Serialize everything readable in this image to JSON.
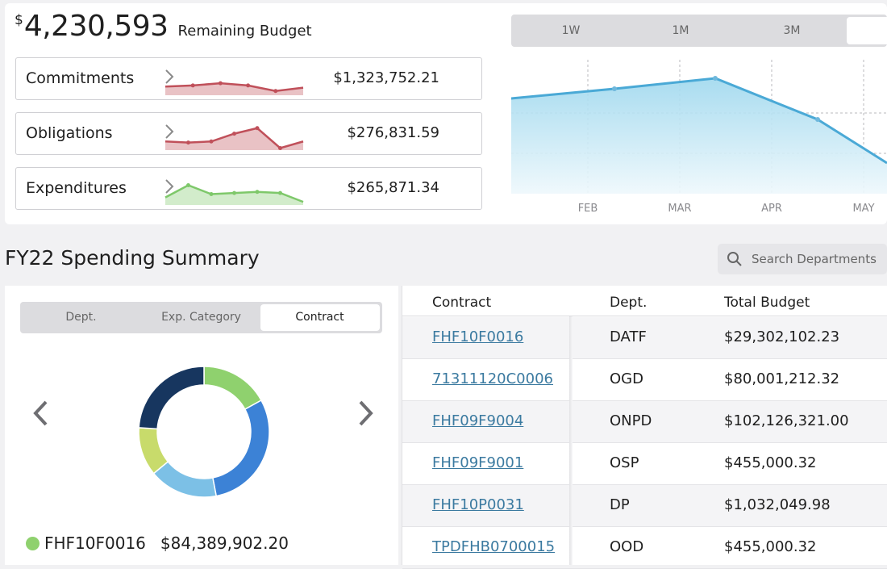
{
  "budget": {
    "currency": "$",
    "amount": "4,230,593",
    "label": "Remaining Budget"
  },
  "metrics": [
    {
      "name": "Commitments",
      "value": "$1,323,752.21",
      "color": "#c0505a",
      "trend": [
        2,
        3,
        5,
        3,
        -2,
        1
      ]
    },
    {
      "name": "Obligations",
      "value": "$276,831.59",
      "color": "#c0505a",
      "trend": [
        2,
        1,
        2,
        9,
        14,
        -4,
        2
      ]
    },
    {
      "name": "Expenditures",
      "value": "$265,871.34",
      "color": "#7ec86a",
      "trend": [
        1,
        12,
        4,
        5,
        6,
        5,
        -3
      ]
    }
  ],
  "range_tabs": [
    "1W",
    "1M",
    "3M",
    ""
  ],
  "range_selected": 3,
  "area_chart": {
    "x_labels": [
      "FEB",
      "MAR",
      "APR",
      "MAY"
    ],
    "line_color": "#4aa9d6"
  },
  "section_title": "FY22 Spending Summary",
  "search": {
    "placeholder": "Search Departments"
  },
  "breakdown_tabs": [
    "Dept.",
    "Exp. Category",
    "Contract"
  ],
  "breakdown_selected": 2,
  "donut": {
    "segments": [
      {
        "color": "#8fd16e",
        "value": 0.17
      },
      {
        "color": "#3c82d6",
        "value": 0.3
      },
      {
        "color": "#7cc0e6",
        "value": 0.17
      },
      {
        "color": "#c8db6b",
        "value": 0.12
      },
      {
        "color": "#17365f",
        "value": 0.24
      }
    ]
  },
  "legend": {
    "label": "FHF10F0016",
    "amount": "$84,389,902.20",
    "color": "#8fd16e"
  },
  "table": {
    "headers": [
      "Contract",
      "Dept.",
      "Total Budget"
    ],
    "rows": [
      {
        "contract": "FHF10F0016",
        "dept": "DATF",
        "budget": "$29,302,102.23"
      },
      {
        "contract": "71311120C0006",
        "dept": "OGD",
        "budget": "$80,001,212.32"
      },
      {
        "contract": "FHF09F9004",
        "dept": "ONPD",
        "budget": "$102,126,321.00"
      },
      {
        "contract": "FHF09F9001",
        "dept": "OSP",
        "budget": "$455,000.32"
      },
      {
        "contract": "FHF10P0031",
        "dept": "DP",
        "budget": "$1,032,049.98"
      },
      {
        "contract": "TPDFHB0700015",
        "dept": "OOD",
        "budget": "$455,000.32"
      }
    ]
  }
}
